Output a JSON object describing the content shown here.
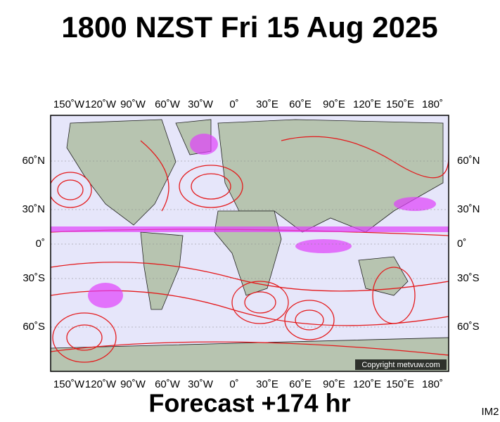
{
  "header": {
    "title": "1800 NZST Fri 15 Aug 2025"
  },
  "map": {
    "longitude_labels": [
      "150˚W",
      "120˚W",
      "90˚W",
      "60˚W",
      "30˚W",
      "0˚",
      "30˚E",
      "60˚E",
      "90˚E",
      "120˚E",
      "150˚E",
      "180˚"
    ],
    "latitude_labels": [
      "60˚N",
      "30˚N",
      "0˚",
      "30˚S",
      "60˚S"
    ],
    "copyright": "Copyright metvuw.com"
  },
  "footer": {
    "forecast": "Forecast +174 hr",
    "code": "IM2"
  }
}
